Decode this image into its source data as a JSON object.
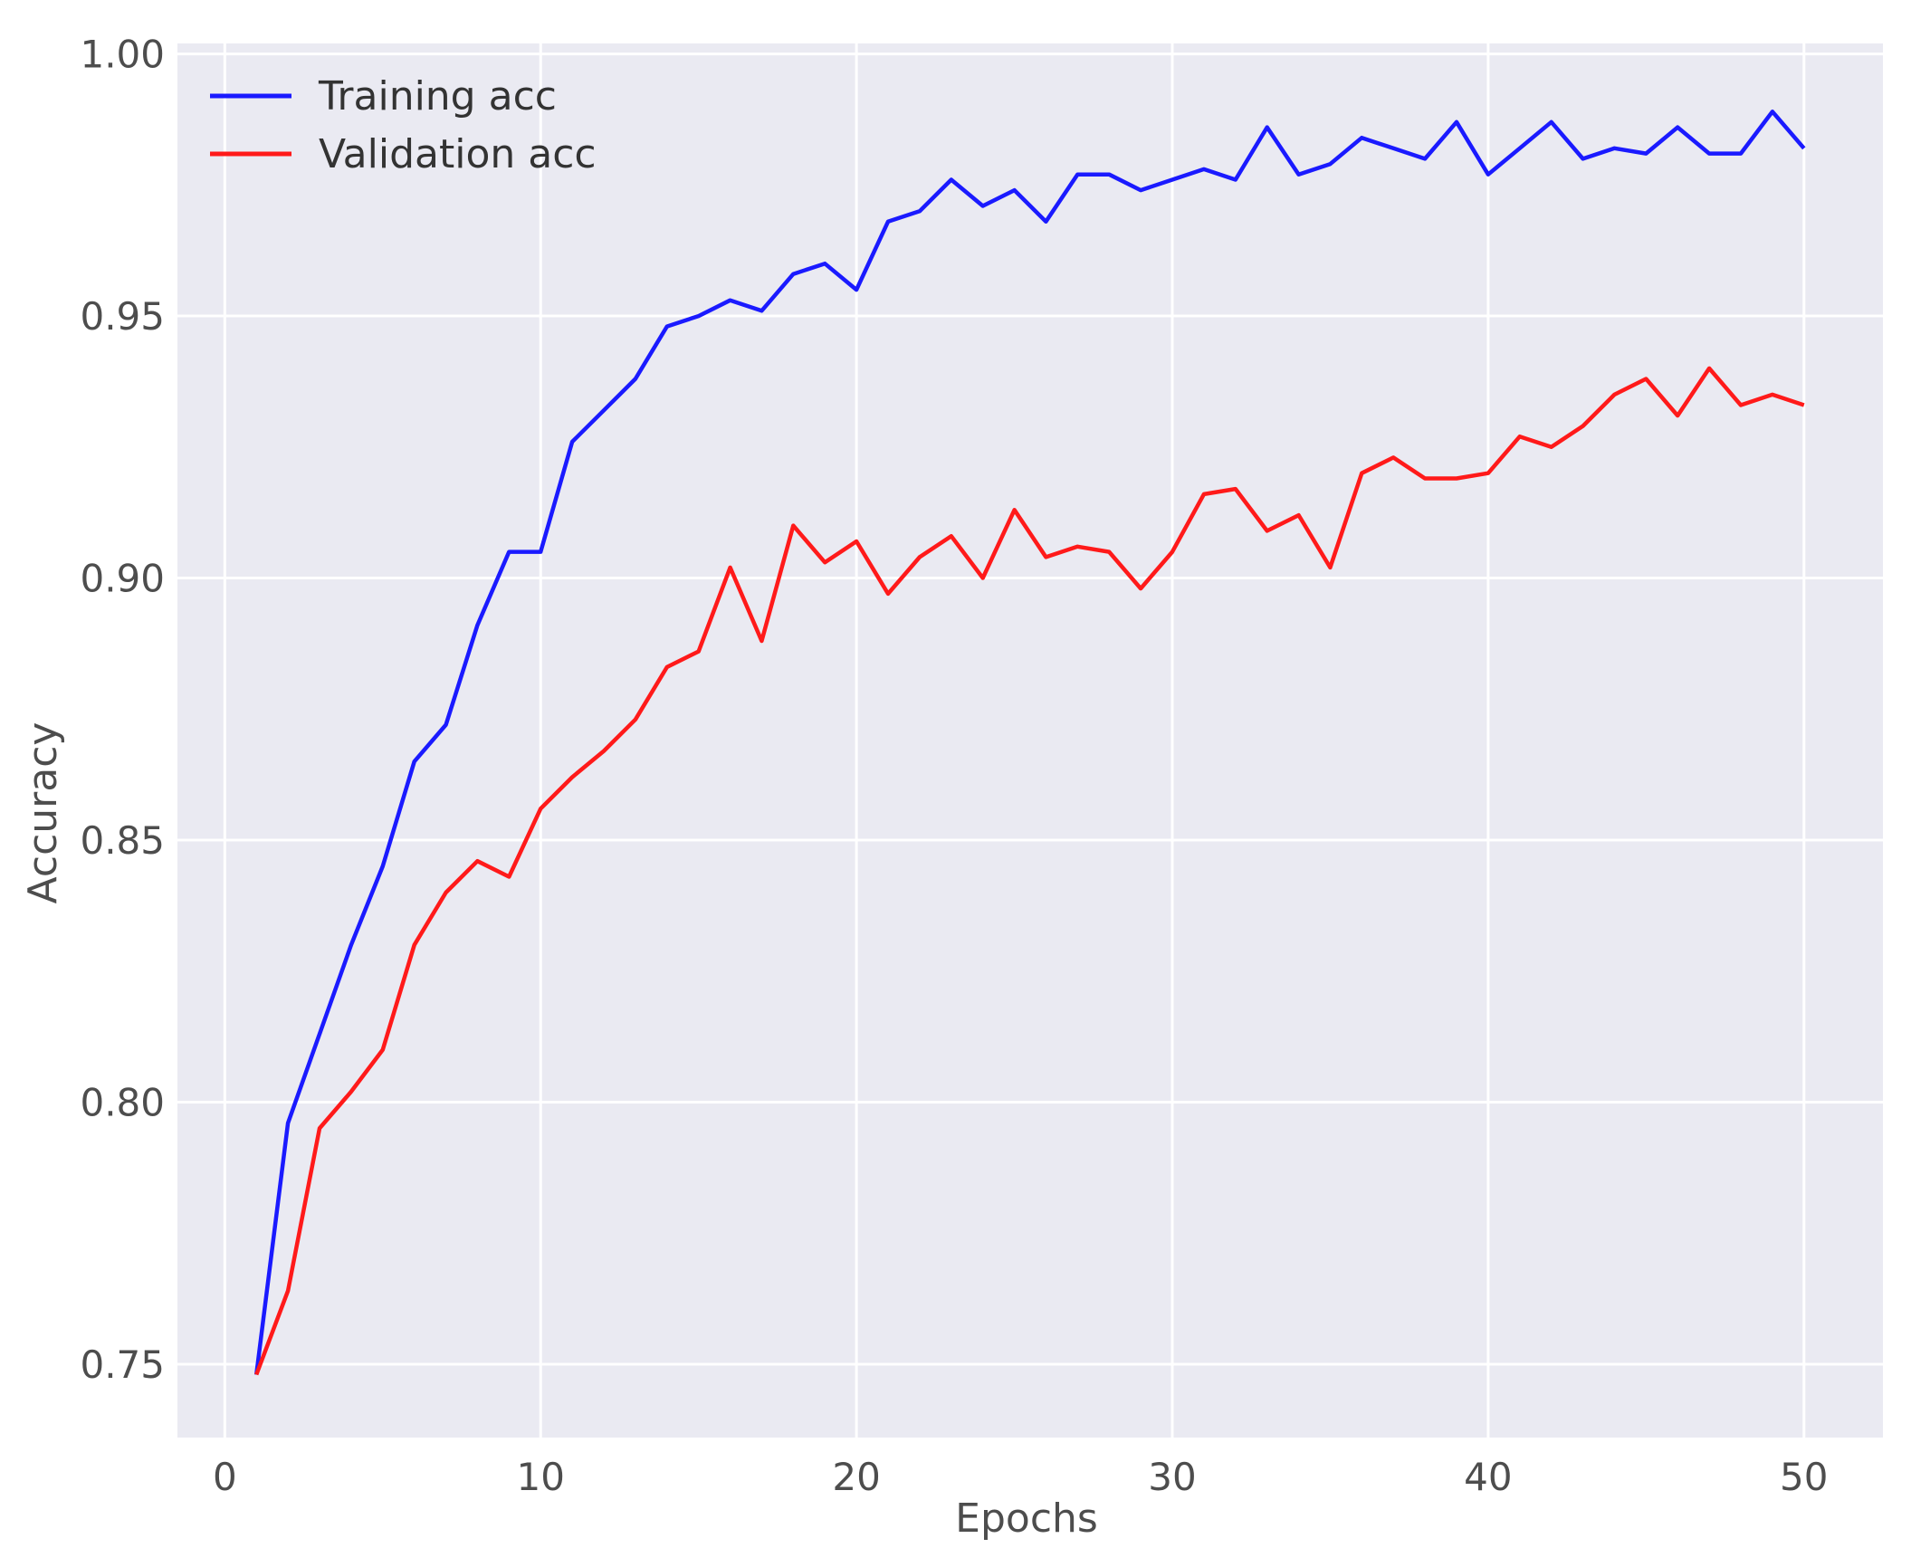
{
  "chart_data": {
    "type": "line",
    "title": "",
    "xlabel": "Epochs",
    "ylabel": "Accuracy",
    "xlim": [
      -1.5,
      52.5
    ],
    "ylim": [
      0.736,
      1.002
    ],
    "xticks": [
      0,
      10,
      20,
      30,
      40,
      50
    ],
    "yticks": [
      0.75,
      0.8,
      0.85,
      0.9,
      0.95,
      1.0
    ],
    "xtick_labels": [
      "0",
      "10",
      "20",
      "30",
      "40",
      "50"
    ],
    "ytick_labels": [
      "0.75",
      "0.80",
      "0.85",
      "0.90",
      "0.95",
      "1.00"
    ],
    "grid": true,
    "legend_position": "top-left",
    "background_color": "#eaeaf2",
    "grid_color": "#ffffff",
    "x": [
      1,
      2,
      3,
      4,
      5,
      6,
      7,
      8,
      9,
      10,
      11,
      12,
      13,
      14,
      15,
      16,
      17,
      18,
      19,
      20,
      21,
      22,
      23,
      24,
      25,
      26,
      27,
      28,
      29,
      30,
      31,
      32,
      33,
      34,
      35,
      36,
      37,
      38,
      39,
      40,
      41,
      42,
      43,
      44,
      45,
      46,
      47,
      48,
      49,
      50
    ],
    "series": [
      {
        "name": "Training acc",
        "color": "#1a1aff",
        "values": [
          0.748,
          0.796,
          0.813,
          0.83,
          0.845,
          0.865,
          0.872,
          0.891,
          0.905,
          0.905,
          0.926,
          0.932,
          0.938,
          0.948,
          0.95,
          0.953,
          0.951,
          0.958,
          0.96,
          0.955,
          0.968,
          0.97,
          0.976,
          0.971,
          0.974,
          0.968,
          0.977,
          0.977,
          0.974,
          0.976,
          0.978,
          0.976,
          0.986,
          0.977,
          0.979,
          0.984,
          0.982,
          0.98,
          0.987,
          0.977,
          0.982,
          0.987,
          0.98,
          0.982,
          0.981,
          0.986,
          0.981,
          0.981,
          0.989,
          0.982
        ]
      },
      {
        "name": "Validation acc",
        "color": "#ff1a1a",
        "values": [
          0.748,
          0.764,
          0.795,
          0.802,
          0.81,
          0.83,
          0.84,
          0.846,
          0.843,
          0.856,
          0.862,
          0.867,
          0.873,
          0.883,
          0.886,
          0.902,
          0.888,
          0.91,
          0.903,
          0.907,
          0.897,
          0.904,
          0.908,
          0.9,
          0.913,
          0.904,
          0.906,
          0.905,
          0.898,
          0.905,
          0.916,
          0.917,
          0.909,
          0.912,
          0.902,
          0.92,
          0.923,
          0.919,
          0.919,
          0.92,
          0.927,
          0.925,
          0.929,
          0.935,
          0.938,
          0.931,
          0.94,
          0.933,
          0.935,
          0.933
        ]
      }
    ]
  }
}
